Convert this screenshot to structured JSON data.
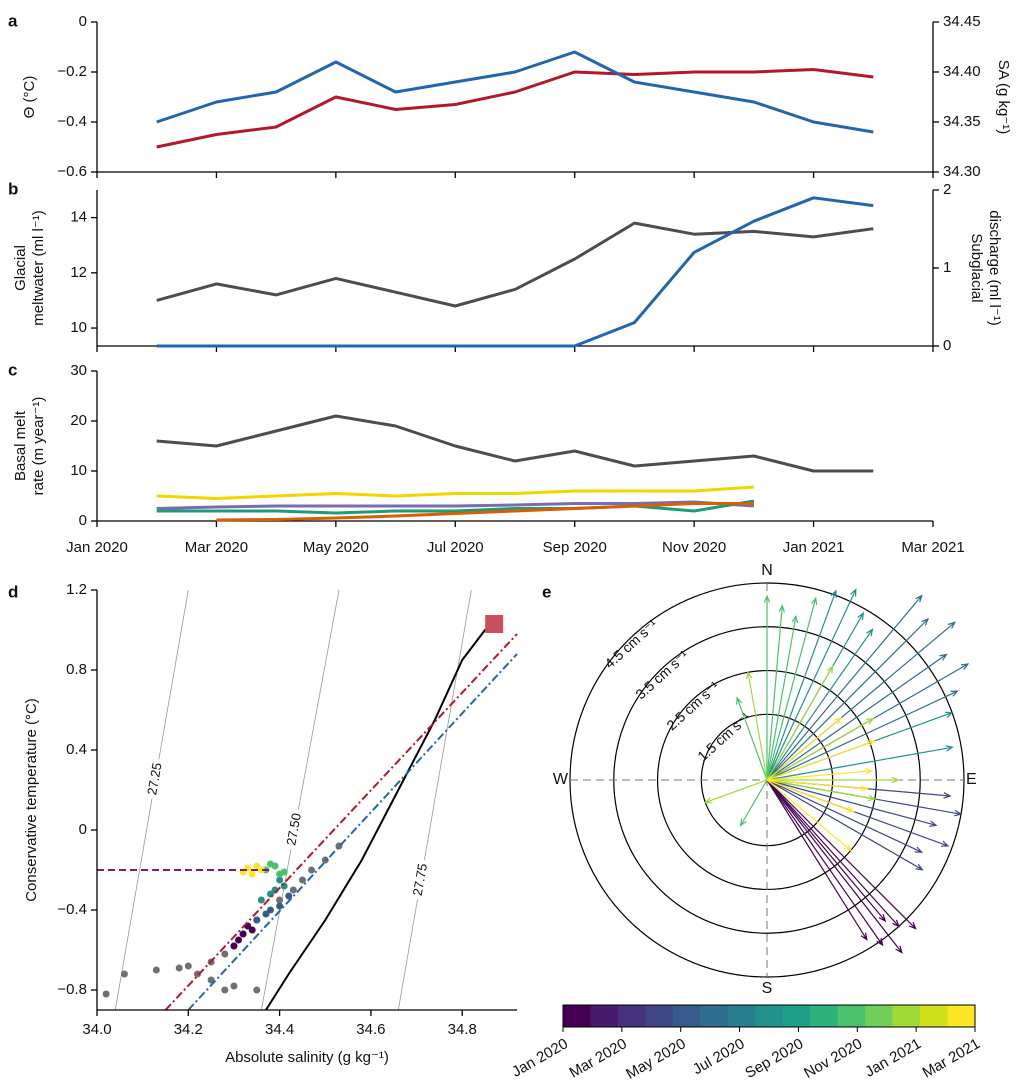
{
  "chart_data": [
    {
      "type": "line",
      "panel_label": "a",
      "x": [
        "2020-02",
        "2020-03",
        "2020-04",
        "2020-05",
        "2020-06",
        "2020-07",
        "2020-08",
        "2020-09",
        "2020-10",
        "2020-11",
        "2020-12",
        "2021-01",
        "2021-02"
      ],
      "xlim": [
        "2020-01",
        "2021-03"
      ],
      "ylabel": [
        "Θ (°C)"
      ],
      "y2label": [
        "SA (g kg⁻¹)"
      ],
      "ylim": [
        -0.6,
        0
      ],
      "yticks": [
        {
          "value": -0.6,
          "label": "−0.6"
        },
        {
          "value": -0.4,
          "label": "−0.4"
        },
        {
          "value": -0.2,
          "label": "−0.2"
        },
        0
      ],
      "y2lim": [
        34.3,
        34.45
      ],
      "y2ticks": [
        {
          "value": 34.3,
          "label": "34.30"
        },
        34.35,
        {
          "value": 34.4,
          "label": "34.40"
        },
        34.45
      ],
      "series": [
        {
          "color": "#b2182b",
          "values": [
            -0.5,
            -0.45,
            -0.42,
            -0.3,
            -0.35,
            -0.33,
            -0.28,
            -0.2,
            -0.21,
            -0.2,
            -0.2,
            -0.19,
            -0.22
          ]
        },
        {
          "color": "#2166ac",
          "axis": "y2",
          "values": [
            34.35,
            34.37,
            34.38,
            34.41,
            34.38,
            34.39,
            34.4,
            34.42,
            34.39,
            34.38,
            34.37,
            34.35,
            34.34
          ]
        }
      ]
    },
    {
      "type": "line",
      "panel_label": "b",
      "x": [
        "2020-02",
        "2020-03",
        "2020-04",
        "2020-05",
        "2020-06",
        "2020-07",
        "2020-08",
        "2020-09",
        "2020-10",
        "2020-11",
        "2020-12",
        "2021-01",
        "2021-02"
      ],
      "xlim": [
        "2020-01",
        "2021-03"
      ],
      "ylabel": [
        "Glacial",
        "meltwater (ml l⁻¹)"
      ],
      "y2label": [
        "Subglacial",
        "discharge (ml l⁻¹)"
      ],
      "ylim": [
        9.35,
        15
      ],
      "yticks": [
        10,
        12,
        14
      ],
      "y2lim": [
        0,
        2
      ],
      "y2ticks": [
        0,
        1,
        2
      ],
      "series": [
        {
          "color": "#4d4d4d",
          "values": [
            11,
            11.6,
            11.2,
            11.8,
            11.3,
            10.8,
            11.4,
            12.5,
            13.8,
            13.4,
            13.5,
            13.3,
            13.6
          ]
        },
        {
          "color": "#2166ac",
          "axis": "y2",
          "values": [
            0,
            0,
            0,
            0,
            0,
            0,
            0,
            0,
            0.3,
            1.2,
            1.6,
            1.9,
            1.8
          ]
        }
      ]
    },
    {
      "type": "line",
      "panel_label": "c",
      "x": [
        "2020-02",
        "2020-03",
        "2020-04",
        "2020-05",
        "2020-06",
        "2020-07",
        "2020-08",
        "2020-09",
        "2020-10",
        "2020-11",
        "2020-12",
        "2021-01",
        "2021-02"
      ],
      "xlim": [
        "2020-01",
        "2021-03"
      ],
      "xticks": [
        {
          "value": "2020-01",
          "label": "Jan 2020"
        },
        {
          "value": "2020-03",
          "label": "Mar 2020"
        },
        {
          "value": "2020-05",
          "label": "May 2020"
        },
        {
          "value": "2020-07",
          "label": "Jul 2020"
        },
        {
          "value": "2020-09",
          "label": "Sep 2020"
        },
        {
          "value": "2020-11",
          "label": "Nov 2020"
        },
        {
          "value": "2021-01",
          "label": "Jan 2021"
        },
        {
          "value": "2021-03",
          "label": "Mar 2021"
        }
      ],
      "ylabel": [
        "Basal melt",
        "rate (m year⁻¹)"
      ],
      "ylim": [
        0,
        30
      ],
      "yticks": [
        0,
        10,
        20,
        30
      ],
      "series": [
        {
          "color": "#4d4d4d",
          "values": [
            16,
            15,
            18,
            21,
            19,
            15,
            12,
            14,
            11,
            12,
            13,
            10,
            10
          ]
        },
        {
          "color": "#f2d600",
          "values": [
            5,
            4.5,
            5,
            5.5,
            5,
            5.5,
            5.5,
            6,
            6,
            6,
            6.8,
            null,
            null
          ]
        },
        {
          "color": "#7b6bb0",
          "values": [
            2.5,
            2.8,
            3,
            3,
            3,
            3,
            3.2,
            3.5,
            3.5,
            3.8,
            3,
            null,
            null
          ]
        },
        {
          "color": "#1b9e77",
          "values": [
            2,
            2,
            2,
            1.6,
            2,
            2,
            2.5,
            2.5,
            3,
            2,
            4,
            null,
            null
          ]
        },
        {
          "color": "#d95f02",
          "values": [
            null,
            0.2,
            0.3,
            0.6,
            1,
            1.5,
            2,
            2.5,
            3,
            3.5,
            3.5,
            null,
            null
          ]
        }
      ]
    },
    {
      "type": "scatter",
      "panel_label": "d",
      "xlabel": "Absolute salinity (g kg⁻¹)",
      "ylabel": "Conservative temperature (°C)",
      "xlim": [
        34.0,
        34.92
      ],
      "xticks": [
        {
          "value": 34.0,
          "label": "34.0"
        },
        34.2,
        34.4,
        34.6,
        34.8
      ],
      "ylim": [
        -0.9,
        1.2
      ],
      "yticks": [
        {
          "value": -0.8,
          "label": "−0.8"
        },
        {
          "value": -0.4,
          "label": "−0.4"
        },
        0,
        0.4,
        0.8,
        1.2
      ],
      "isopycnals": [
        {
          "label": "27.25",
          "x": [
            34.04,
            34.2
          ],
          "y": [
            -0.9,
            1.2
          ]
        },
        {
          "label": "27.50",
          "x": [
            34.36,
            34.53
          ],
          "y": [
            -0.9,
            1.2
          ]
        },
        {
          "label": "27.75",
          "x": [
            34.66,
            34.82
          ],
          "y": [
            -0.9,
            1.2
          ]
        }
      ],
      "curves": [
        {
          "color": "#000000",
          "linestyle": "solid",
          "x": [
            34.37,
            34.42,
            34.5,
            34.58,
            34.66,
            34.74,
            34.8,
            34.85,
            34.87
          ],
          "y": [
            -0.9,
            -0.72,
            -0.45,
            -0.15,
            0.2,
            0.55,
            0.85,
            1.0,
            1.03
          ]
        },
        {
          "color": "#b2182b",
          "linestyle": "dashdot",
          "x": [
            34.15,
            34.92
          ],
          "y": [
            -0.9,
            0.98
          ]
        },
        {
          "color": "#2166ac",
          "linestyle": "dashdot",
          "x": [
            34.2,
            34.92
          ],
          "y": [
            -0.9,
            0.88
          ]
        },
        {
          "color": "#7b1f6e",
          "linestyle": "dashed",
          "x": [
            34.0,
            34.38
          ],
          "y": [
            -0.2,
            -0.2
          ]
        }
      ],
      "series": [
        {
          "color": "#707070",
          "x": [
            34.02,
            34.06,
            34.13,
            34.18,
            34.2,
            34.25,
            34.28,
            34.3,
            34.32,
            34.35,
            34.4,
            34.45,
            34.5,
            34.53,
            34.25,
            34.28,
            34.3,
            34.22,
            34.35,
            34.43,
            34.47
          ],
          "y": [
            -0.82,
            -0.72,
            -0.7,
            -0.69,
            -0.68,
            -0.66,
            -0.62,
            -0.58,
            -0.52,
            -0.45,
            -0.35,
            -0.25,
            -0.15,
            -0.08,
            -0.75,
            -0.8,
            -0.78,
            -0.72,
            -0.8,
            -0.3,
            -0.2
          ]
        },
        {
          "color": "#440154",
          "x": [
            34.3,
            34.32,
            34.34,
            34.31,
            34.33
          ],
          "y": [
            -0.58,
            -0.52,
            -0.5,
            -0.55,
            -0.48
          ]
        },
        {
          "color": "#365c8d",
          "x": [
            34.35,
            34.37,
            34.4,
            34.38,
            34.42
          ],
          "y": [
            -0.45,
            -0.42,
            -0.38,
            -0.4,
            -0.33
          ]
        },
        {
          "color": "#21918c",
          "x": [
            34.36,
            34.39,
            34.41,
            34.38,
            34.4
          ],
          "y": [
            -0.35,
            -0.3,
            -0.28,
            -0.32,
            -0.25
          ]
        },
        {
          "color": "#4ac16d",
          "x": [
            34.37,
            34.39,
            34.41,
            34.38,
            34.4
          ],
          "y": [
            -0.2,
            -0.18,
            -0.21,
            -0.17,
            -0.22
          ]
        },
        {
          "color": "#fde725",
          "x": [
            34.32,
            34.33,
            34.34,
            34.35,
            34.36
          ],
          "y": [
            -0.21,
            -0.19,
            -0.22,
            -0.18,
            -0.2
          ]
        }
      ],
      "marker": {
        "color": "#c9505a",
        "x": 34.87,
        "y": 1.03
      }
    },
    {
      "type": "polar",
      "panel_label": "e",
      "compass": [
        "N",
        "E",
        "S",
        "W"
      ],
      "rlim": [
        0,
        4.5
      ],
      "rticks": [
        {
          "value": 1.5,
          "label": "1.5 cm s⁻¹"
        },
        {
          "value": 2.5,
          "label": "2.5 cm s⁻¹"
        },
        {
          "value": 3.5,
          "label": "3.5 cm s⁻¹"
        },
        {
          "value": 4.5,
          "label": "4.5 cm s⁻¹"
        }
      ],
      "series": [
        {
          "color": "#440154",
          "direction": [
            135,
            138,
            140,
            142,
            145,
            148
          ],
          "speed": [
            4.8,
            4.5,
            4.2,
            5,
            4.6,
            4.3
          ]
        },
        {
          "color": "#3f4788",
          "direction": [
            95,
            100,
            105,
            110,
            115,
            120
          ],
          "speed": [
            4.2,
            4.5,
            4,
            4.4,
            3.9,
            4.1
          ]
        },
        {
          "color": "#2e6e8e",
          "direction": [
            40,
            45,
            50,
            55,
            60,
            65
          ],
          "speed": [
            5.5,
            5.2,
            5.6,
            5,
            5.3,
            4.8
          ]
        },
        {
          "color": "#21918c",
          "direction": [
            20,
            25,
            30,
            35,
            70,
            80
          ],
          "speed": [
            4.6,
            4.8,
            4.4,
            4.2,
            4.5,
            4.3
          ]
        },
        {
          "color": "#4ac16d",
          "direction": [
            0,
            5,
            10,
            15,
            340,
            210
          ],
          "speed": [
            4.2,
            4,
            3.8,
            4.3,
            2,
            1.2
          ]
        },
        {
          "color": "#a0da39",
          "direction": [
            350,
            30,
            60,
            90,
            100,
            250
          ],
          "speed": [
            2.5,
            3,
            2.8,
            3,
            2.5,
            1.5
          ]
        },
        {
          "color": "#fde725",
          "direction": [
            50,
            70,
            85,
            95,
            110,
            130
          ],
          "speed": [
            2.2,
            2.6,
            2.4,
            2.3,
            2.1,
            2.5
          ]
        }
      ],
      "colorbar": {
        "colors": [
          "#440154",
          "#481b6d",
          "#46327e",
          "#3f4788",
          "#365c8d",
          "#2e6e8e",
          "#277f8e",
          "#21918c",
          "#1fa187",
          "#2db27d",
          "#4ac16d",
          "#71cf57",
          "#a0da39",
          "#d0e11c",
          "#fde725"
        ],
        "ticks": [
          "Jan 2020",
          "Mar 2020",
          "May 2020",
          "Jul 2020",
          "Sep 2020",
          "Nov 2020",
          "Jan 2021",
          "Mar 2021"
        ]
      }
    }
  ]
}
